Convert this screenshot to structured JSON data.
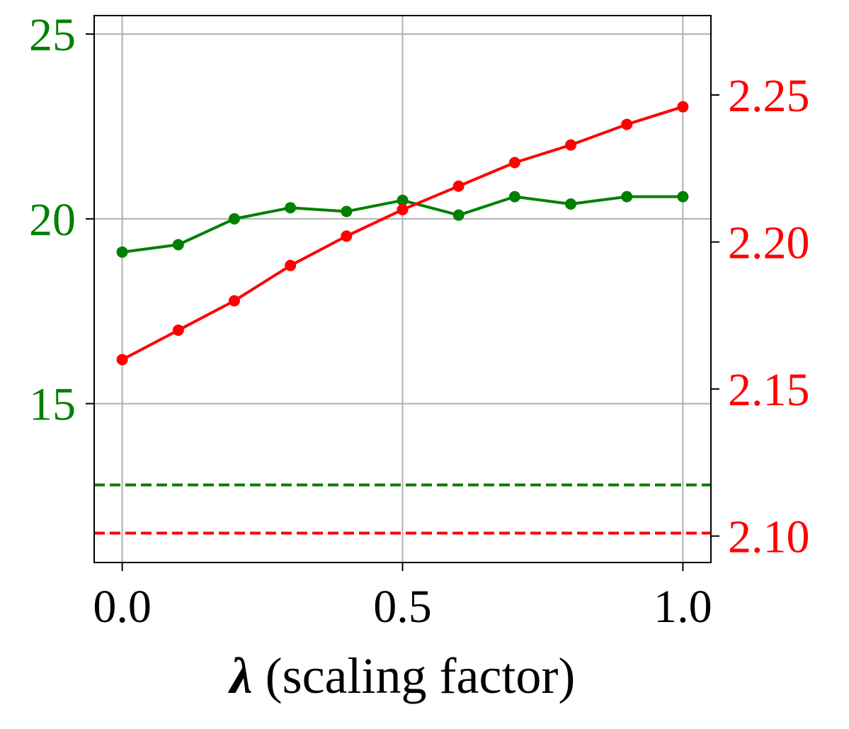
{
  "chart_data": {
    "type": "line",
    "xlabel_symbol": "λ",
    "xlabel_rest": " (scaling factor)",
    "x": [
      0.0,
      0.1,
      0.2,
      0.3,
      0.4,
      0.5,
      0.6,
      0.7,
      0.8,
      0.9,
      1.0
    ],
    "x_ticks": [
      0.0,
      0.5,
      1.0
    ],
    "x_tick_labels": [
      "0.0",
      "0.5",
      "1.0"
    ],
    "xlim": [
      -0.05,
      1.05
    ],
    "y_left": {
      "ylim": [
        10.7,
        25.5
      ],
      "ticks": [
        15,
        20,
        25
      ],
      "tick_labels": [
        "15",
        "20",
        "25"
      ],
      "color": "#008000"
    },
    "y_right": {
      "ylim": [
        2.091,
        2.277
      ],
      "ticks": [
        2.1,
        2.15,
        2.2,
        2.25
      ],
      "tick_labels": [
        "2.10",
        "2.15",
        "2.20",
        "2.25"
      ],
      "color": "#ff0000"
    },
    "series": [
      {
        "axis": "left",
        "color": "#008000",
        "style": "solid",
        "marker": "circle",
        "values": [
          19.1,
          19.3,
          20.0,
          20.3,
          20.2,
          20.5,
          20.1,
          20.6,
          20.4,
          20.6,
          20.6
        ]
      },
      {
        "axis": "right",
        "color": "#ff0000",
        "style": "solid",
        "marker": "circle",
        "values": [
          2.16,
          2.17,
          2.18,
          2.192,
          2.202,
          2.211,
          2.219,
          2.227,
          2.233,
          2.24,
          2.246
        ]
      }
    ],
    "baselines": [
      {
        "axis": "left",
        "value": 12.8,
        "color": "#008000",
        "style": "dashed"
      },
      {
        "axis": "right",
        "value": 2.101,
        "color": "#ff0000",
        "style": "dashed"
      }
    ],
    "grid": true,
    "legend": "none"
  }
}
